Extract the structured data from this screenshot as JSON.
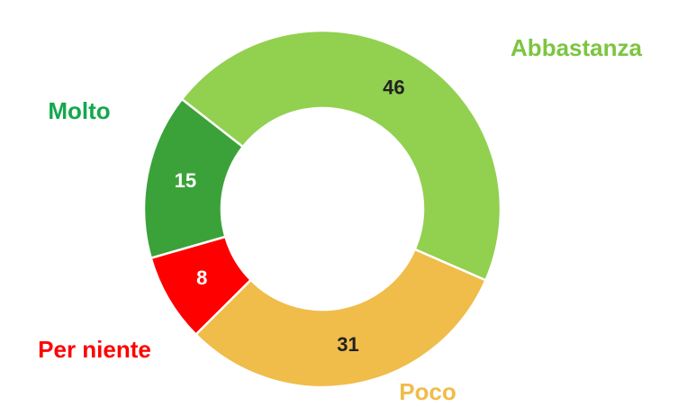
{
  "chart_data": {
    "type": "donut",
    "categories": [
      "Abbastanza",
      "Poco",
      "Per niente",
      "Molto"
    ],
    "values": [
      46,
      31,
      8,
      15
    ],
    "colors": [
      "#92d050",
      "#f0bc4a",
      "#ff0000",
      "#3ba23a"
    ],
    "label_colors": [
      "#7cc540",
      "#f0bc4a",
      "#ff0000",
      "#13a84e"
    ]
  }
}
